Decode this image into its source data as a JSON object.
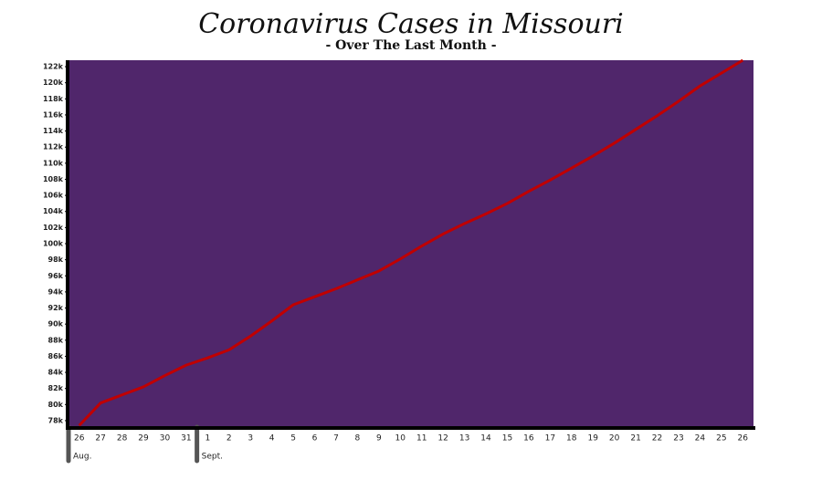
{
  "chart_data": {
    "type": "line",
    "title": "Coronavirus Cases in Missouri",
    "subtitle": "- Over The Last Month -",
    "categories": [
      "26",
      "27",
      "28",
      "29",
      "30",
      "31",
      "1",
      "2",
      "3",
      "4",
      "5",
      "6",
      "7",
      "8",
      "9",
      "10",
      "11",
      "12",
      "13",
      "14",
      "15",
      "16",
      "17",
      "18",
      "19",
      "20",
      "21",
      "22",
      "23",
      "24",
      "25",
      "26"
    ],
    "x_groups": [
      {
        "label": "Aug.",
        "start": 0
      },
      {
        "label": "Sept.",
        "start": 6
      }
    ],
    "series": [
      {
        "name": "Cases",
        "color": "#c00000",
        "values": [
          77400,
          80200,
          81200,
          82200,
          83600,
          84900,
          85800,
          86800,
          88500,
          90400,
          92400,
          93400,
          94400,
          95500,
          96600,
          98100,
          99700,
          101200,
          102500,
          103700,
          105000,
          106500,
          107900,
          109400,
          110900,
          112500,
          114200,
          115900,
          117700,
          119600,
          121200,
          122800
        ]
      }
    ],
    "ylim": [
      77200,
      122800
    ],
    "yticks": [
      {
        "value": 78000,
        "label": "78k"
      },
      {
        "value": 80000,
        "label": "80k"
      },
      {
        "value": 82000,
        "label": "82k"
      },
      {
        "value": 84000,
        "label": "84k"
      },
      {
        "value": 86000,
        "label": "86k"
      },
      {
        "value": 88000,
        "label": "88k"
      },
      {
        "value": 90000,
        "label": "90k"
      },
      {
        "value": 92000,
        "label": "92k"
      },
      {
        "value": 94000,
        "label": "94k"
      },
      {
        "value": 96000,
        "label": "96k"
      },
      {
        "value": 98000,
        "label": "98k"
      },
      {
        "value": 100000,
        "label": "100k"
      },
      {
        "value": 102000,
        "label": "102k"
      },
      {
        "value": 104000,
        "label": "104k"
      },
      {
        "value": 106000,
        "label": "106k"
      },
      {
        "value": 108000,
        "label": "108k"
      },
      {
        "value": 110000,
        "label": "110k"
      },
      {
        "value": 112000,
        "label": "112k"
      },
      {
        "value": 114000,
        "label": "114k"
      },
      {
        "value": 116000,
        "label": "116k"
      },
      {
        "value": 118000,
        "label": "118k"
      },
      {
        "value": 120000,
        "label": "120k"
      },
      {
        "value": 122000,
        "label": "122k"
      }
    ],
    "background": "#50266b"
  }
}
